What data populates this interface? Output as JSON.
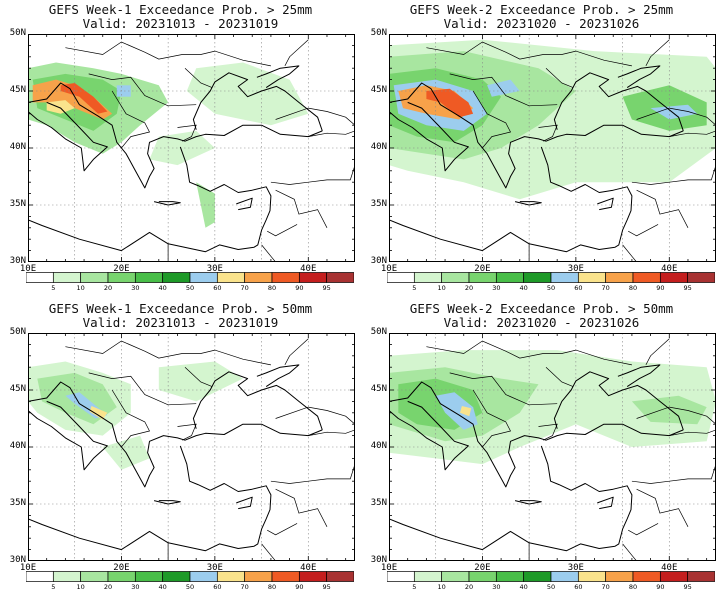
{
  "panels": [
    {
      "title": "GEFS Week-1 Exceedance Prob. > 25mm",
      "valid": "Valid: 20231013 - 20231019"
    },
    {
      "title": "GEFS Week-2 Exceedance Prob. > 25mm",
      "valid": "Valid: 20231020 - 20231026"
    },
    {
      "title": "GEFS Week-1 Exceedance Prob. > 50mm",
      "valid": "Valid: 20231013 - 20231019"
    },
    {
      "title": "GEFS Week-2 Exceedance Prob. > 50mm",
      "valid": "Valid: 20231020 - 20231026"
    }
  ],
  "lat_labels": [
    "50N",
    "45N",
    "40N",
    "35N",
    "30N"
  ],
  "lon_labels": [
    "10E",
    "20E",
    "30E",
    "40E"
  ],
  "colorbar": {
    "labels": [
      "5",
      "10",
      "20",
      "30",
      "40",
      "50",
      "60",
      "70",
      "80",
      "90",
      "95"
    ],
    "colors": [
      "#ffffff",
      "#d4f5cf",
      "#a8e6a0",
      "#78d46e",
      "#48be48",
      "#1e9a28",
      "#9ccdee",
      "#fae38c",
      "#f7a24a",
      "#ef5a24",
      "#c41e1e",
      "#a83232"
    ]
  }
}
